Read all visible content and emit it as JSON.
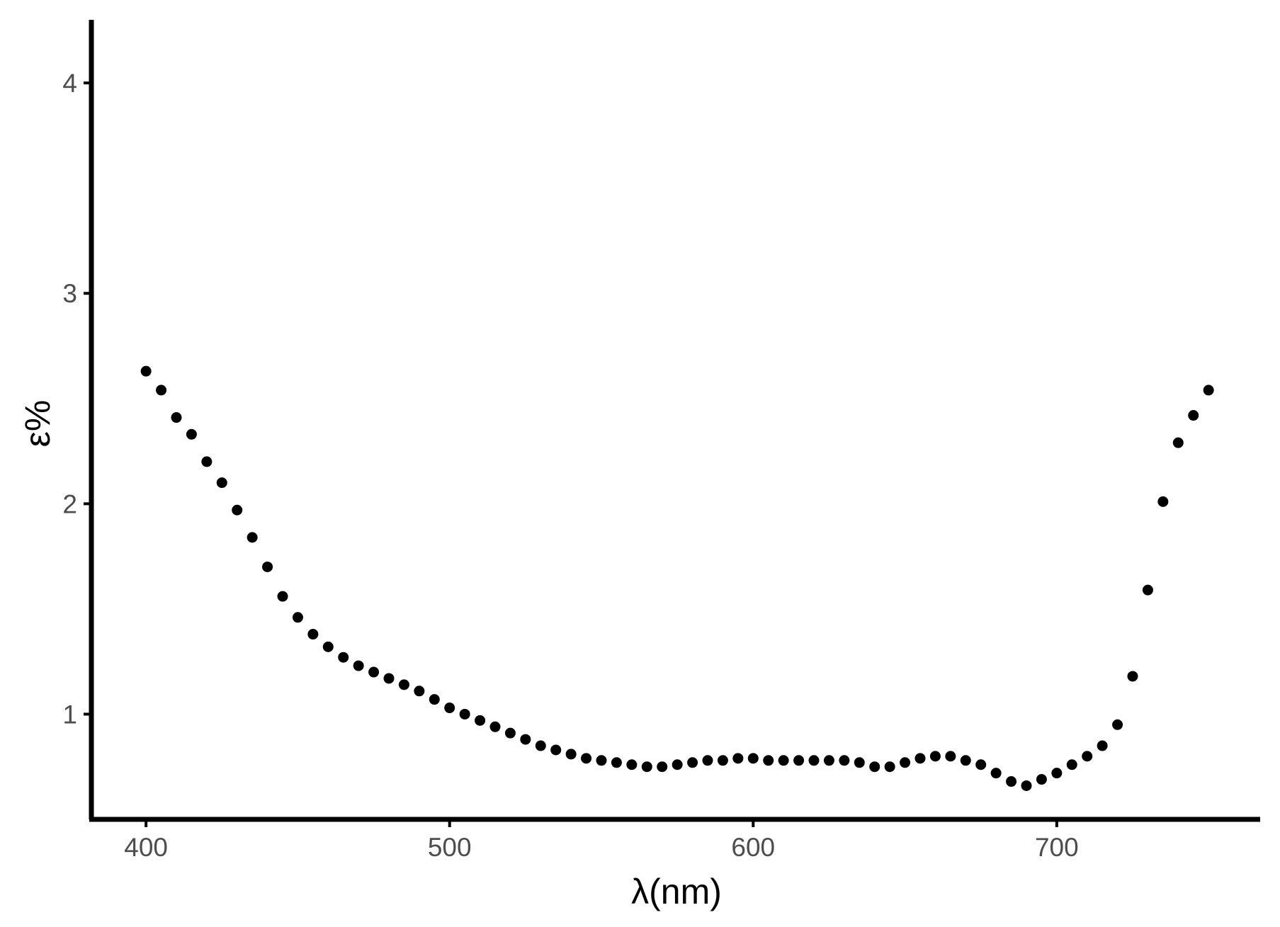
{
  "chart_data": {
    "type": "scatter",
    "title": "",
    "xlabel": "λ(nm)",
    "ylabel": "ε%",
    "xlim": [
      382,
      767
    ],
    "ylim": [
      0.5,
      4.3
    ],
    "xticks": [
      400,
      500,
      600,
      700
    ],
    "yticks": [
      1,
      2,
      3,
      4
    ],
    "x_tick_labels": [
      "400",
      "500",
      "600",
      "700"
    ],
    "y_tick_labels": [
      "1",
      "2",
      "3",
      "4"
    ],
    "grid": false,
    "legend": "none",
    "point_color": "#000000",
    "axis_color": "#000000",
    "tick_label_color": "#4d4d4d",
    "series": [
      {
        "x": [
          400,
          405,
          410,
          415,
          420,
          425,
          430,
          435,
          440,
          445,
          450,
          455,
          460,
          465,
          470,
          475,
          480,
          485,
          490,
          495,
          500,
          505,
          510,
          515,
          520,
          525,
          530,
          535,
          540,
          545,
          550,
          555,
          560,
          565,
          570,
          575,
          580,
          585,
          590,
          595,
          600,
          605,
          610,
          615,
          620,
          625,
          630,
          635,
          640,
          645,
          650,
          655,
          660,
          665,
          670,
          675,
          680,
          685,
          690,
          695,
          700,
          705,
          710,
          715,
          720,
          725,
          730,
          735,
          740,
          745,
          750
        ],
        "y": [
          2.63,
          2.54,
          2.41,
          2.33,
          2.2,
          2.1,
          1.97,
          1.84,
          1.7,
          1.56,
          1.46,
          1.38,
          1.32,
          1.27,
          1.23,
          1.2,
          1.17,
          1.14,
          1.11,
          1.07,
          1.03,
          1.0,
          0.97,
          0.94,
          0.91,
          0.88,
          0.85,
          0.83,
          0.81,
          0.79,
          0.78,
          0.77,
          0.76,
          0.75,
          0.75,
          0.76,
          0.77,
          0.78,
          0.78,
          0.79,
          0.79,
          0.78,
          0.78,
          0.78,
          0.78,
          0.78,
          0.78,
          0.77,
          0.75,
          0.75,
          0.77,
          0.79,
          0.8,
          0.8,
          0.78,
          0.76,
          0.72,
          0.68,
          0.66,
          0.69,
          0.72,
          0.76,
          0.8,
          0.85,
          0.95,
          1.18,
          1.59,
          2.01,
          2.29,
          2.42,
          2.54
        ]
      }
    ]
  }
}
